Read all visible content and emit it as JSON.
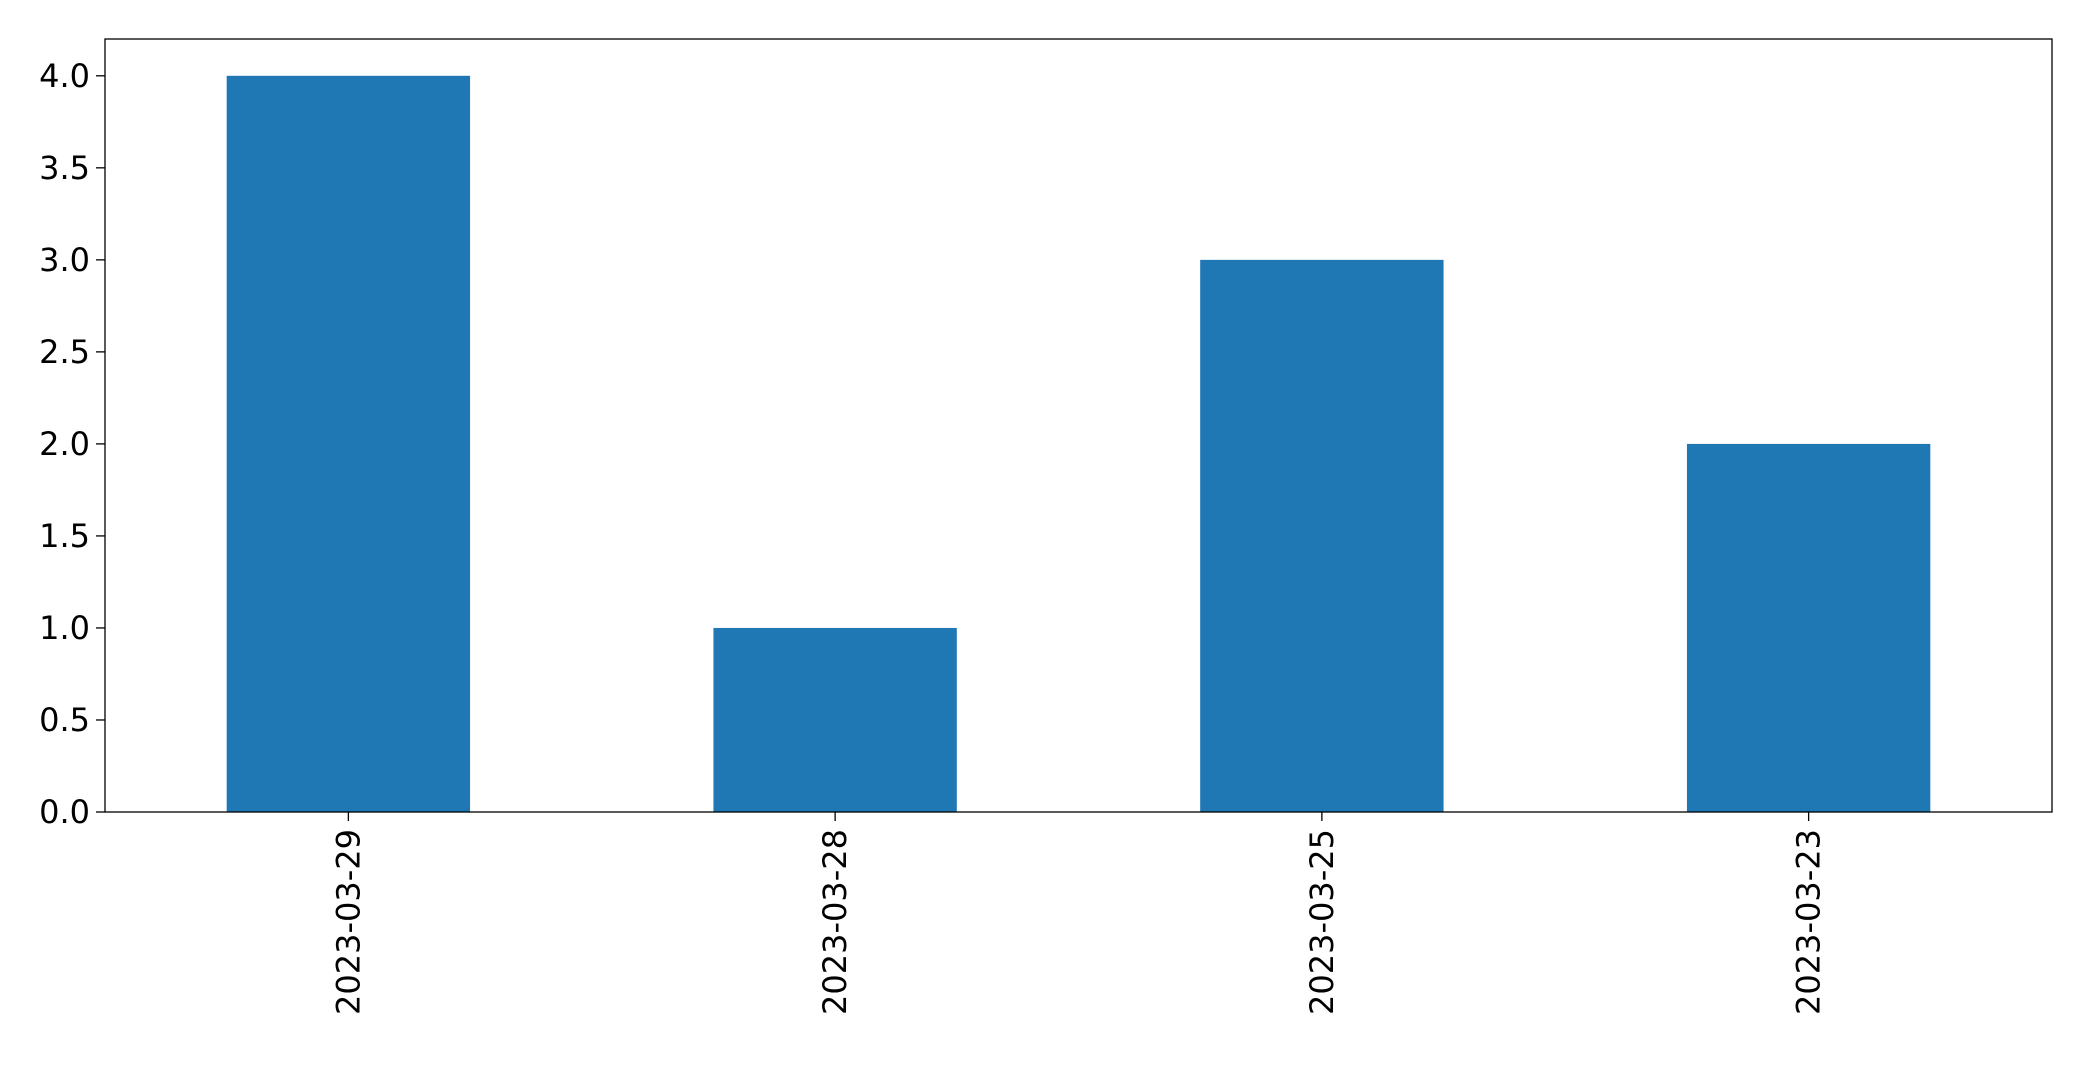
{
  "chart_data": {
    "type": "bar",
    "categories": [
      "2023-03-29",
      "2023-03-28",
      "2023-03-25",
      "2023-03-23"
    ],
    "values": [
      4,
      1,
      3,
      2
    ],
    "title": "",
    "xlabel": "",
    "ylabel": "",
    "ylim": [
      0,
      4.2
    ],
    "yticks": [
      0.0,
      0.5,
      1.0,
      1.5,
      2.0,
      2.5,
      3.0,
      3.5,
      4.0
    ],
    "ytick_labels": [
      "0.0",
      "0.5",
      "1.0",
      "1.5",
      "2.0",
      "2.5",
      "3.0",
      "3.5",
      "4.0"
    ],
    "xtick_rotation": "vertical",
    "grid": false,
    "legend": "none",
    "bar_color": "#1f77b4"
  }
}
